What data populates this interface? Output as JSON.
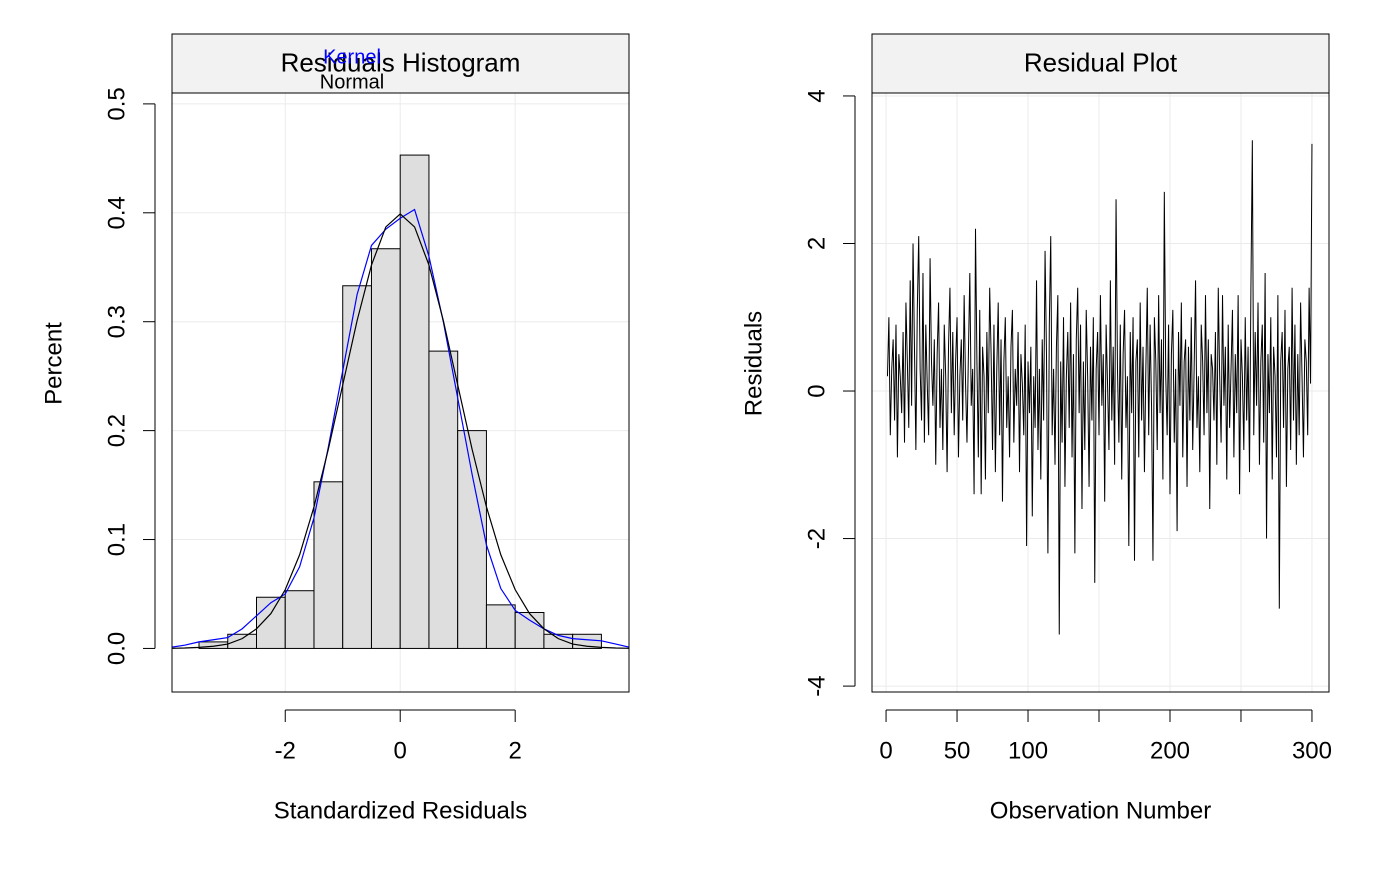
{
  "chart_data": [
    {
      "type": "histogram",
      "title": "Residuals Histogram",
      "xlabel": "Standardized Residuals",
      "ylabel": "Percent",
      "bins": [
        -3.5,
        -3,
        -2.5,
        -2,
        -1.5,
        -1,
        -0.5,
        0,
        0.5,
        1,
        1.5,
        2,
        2.5,
        3,
        3.5
      ],
      "values": [
        0.006,
        0.013,
        0.047,
        0.053,
        0.153,
        0.333,
        0.367,
        0.453,
        0.273,
        0.2,
        0.04,
        0.033,
        0.013,
        0.013
      ],
      "color": "#dedede",
      "series": [
        {
          "name": "Kernel",
          "color": "#0000ff",
          "x": [
            -4,
            -3.75,
            -3.5,
            -3.25,
            -3,
            -2.75,
            -2.5,
            -2.25,
            -2,
            -1.75,
            -1.5,
            -1.25,
            -1,
            -0.75,
            -0.5,
            -0.25,
            0,
            0.25,
            0.5,
            0.75,
            1,
            1.25,
            1.5,
            1.75,
            2,
            2.25,
            2.5,
            2.75,
            3,
            3.25,
            3.5,
            3.75,
            4
          ],
          "values": [
            0.001,
            0.003,
            0.006,
            0.008,
            0.01,
            0.018,
            0.03,
            0.042,
            0.05,
            0.075,
            0.12,
            0.185,
            0.255,
            0.325,
            0.37,
            0.385,
            0.395,
            0.403,
            0.36,
            0.3,
            0.23,
            0.16,
            0.095,
            0.055,
            0.035,
            0.026,
            0.018,
            0.012,
            0.009,
            0.008,
            0.007,
            0.004,
            0.001
          ]
        },
        {
          "name": "Normal",
          "color": "#000000",
          "x": [
            -4,
            -3.75,
            -3.5,
            -3.25,
            -3,
            -2.75,
            -2.5,
            -2.25,
            -2,
            -1.75,
            -1.5,
            -1.25,
            -1,
            -0.75,
            -0.5,
            -0.25,
            0,
            0.25,
            0.5,
            0.75,
            1,
            1.25,
            1.5,
            1.75,
            2,
            2.25,
            2.5,
            2.75,
            3,
            3.25,
            3.5,
            3.75,
            4
          ],
          "values": [
            0.0001,
            0.0004,
            0.001,
            0.002,
            0.004,
            0.009,
            0.018,
            0.032,
            0.054,
            0.086,
            0.13,
            0.183,
            0.242,
            0.301,
            0.352,
            0.387,
            0.399,
            0.387,
            0.352,
            0.301,
            0.242,
            0.183,
            0.13,
            0.086,
            0.054,
            0.032,
            0.018,
            0.009,
            0.004,
            0.002,
            0.001,
            0.0004,
            0.0001
          ]
        }
      ],
      "xlim": [
        -3.97,
        3.98
      ],
      "ylim": [
        -0.04,
        0.51
      ],
      "xticks": [
        -2,
        0,
        2
      ],
      "yticks": [
        {
          "value": 0,
          "label": "0.0"
        },
        0.1,
        0.2,
        0.3,
        0.4,
        0.5
      ],
      "grid": true,
      "legend": "top"
    },
    {
      "type": "line",
      "title": "Residual Plot",
      "xlabel": "Observation Number",
      "ylabel": "Residuals",
      "color": "#000000",
      "x": [
        1,
        2,
        3,
        4,
        5,
        6,
        7,
        8,
        9,
        10,
        11,
        12,
        13,
        14,
        15,
        16,
        17,
        18,
        19,
        20,
        21,
        22,
        23,
        24,
        25,
        26,
        27,
        28,
        29,
        30,
        31,
        32,
        33,
        34,
        35,
        36,
        37,
        38,
        39,
        40,
        41,
        42,
        43,
        44,
        45,
        46,
        47,
        48,
        49,
        50,
        51,
        52,
        53,
        54,
        55,
        56,
        57,
        58,
        59,
        60,
        61,
        62,
        63,
        64,
        65,
        66,
        67,
        68,
        69,
        70,
        71,
        72,
        73,
        74,
        75,
        76,
        77,
        78,
        79,
        80,
        81,
        82,
        83,
        84,
        85,
        86,
        87,
        88,
        89,
        90,
        91,
        92,
        93,
        94,
        95,
        96,
        97,
        98,
        99,
        100,
        101,
        102,
        103,
        104,
        105,
        106,
        107,
        108,
        109,
        110,
        111,
        112,
        113,
        114,
        115,
        116,
        117,
        118,
        119,
        120,
        121,
        122,
        123,
        124,
        125,
        126,
        127,
        128,
        129,
        130,
        131,
        132,
        133,
        134,
        135,
        136,
        137,
        138,
        139,
        140,
        141,
        142,
        143,
        144,
        145,
        146,
        147,
        148,
        149,
        150,
        151,
        152,
        153,
        154,
        155,
        156,
        157,
        158,
        159,
        160,
        161,
        162,
        163,
        164,
        165,
        166,
        167,
        168,
        169,
        170,
        171,
        172,
        173,
        174,
        175,
        176,
        177,
        178,
        179,
        180,
        181,
        182,
        183,
        184,
        185,
        186,
        187,
        188,
        189,
        190,
        191,
        192,
        193,
        194,
        195,
        196,
        197,
        198,
        199,
        200,
        201,
        202,
        203,
        204,
        205,
        206,
        207,
        208,
        209,
        210,
        211,
        212,
        213,
        214,
        215,
        216,
        217,
        218,
        219,
        220,
        221,
        222,
        223,
        224,
        225,
        226,
        227,
        228,
        229,
        230,
        231,
        232,
        233,
        234,
        235,
        236,
        237,
        238,
        239,
        240,
        241,
        242,
        243,
        244,
        245,
        246,
        247,
        248,
        249,
        250,
        251,
        252,
        253,
        254,
        255,
        256,
        257,
        258,
        259,
        260,
        261,
        262,
        263,
        264,
        265,
        266,
        267,
        268,
        269,
        270,
        271,
        272,
        273,
        274,
        275,
        276,
        277,
        278,
        279,
        280,
        281,
        282,
        283,
        284,
        285,
        286,
        287,
        288,
        289,
        290,
        291,
        292,
        293,
        294,
        295,
        296,
        297,
        298,
        299,
        300
      ],
      "values": [
        0.2,
        1.0,
        -0.6,
        0.3,
        0.7,
        -0.4,
        0.9,
        -0.9,
        0.5,
        0.2,
        -0.3,
        0.8,
        -0.7,
        1.2,
        0.4,
        -0.5,
        1.5,
        -0.2,
        2.0,
        0.6,
        -0.8,
        1.1,
        2.1,
        0.3,
        -0.4,
        1.6,
        -0.7,
        0.9,
        0.1,
        -0.6,
        1.8,
        0.4,
        -0.2,
        0.7,
        -1.0,
        0.5,
        1.2,
        -0.5,
        0.3,
        -0.8,
        0.9,
        0.2,
        -1.1,
        0.6,
        1.4,
        -0.3,
        0.8,
        -0.6,
        0.4,
        1.0,
        -0.9,
        0.2,
        0.7,
        -0.4,
        1.3,
        0.1,
        -0.7,
        0.5,
        1.6,
        -0.2,
        0.3,
        -1.4,
        2.2,
        0.4,
        -0.9,
        1.1,
        -1.4,
        0.6,
        0.2,
        -1.2,
        0.8,
        -0.3,
        1.4,
        0.5,
        -0.8,
        0.9,
        -1.1,
        0.3,
        1.2,
        -0.6,
        0.7,
        -1.5,
        0.4,
        1.0,
        -0.5,
        0.2,
        -0.9,
        0.6,
        1.1,
        -0.7,
        0.3,
        -0.2,
        0.8,
        -1.1,
        0.5,
        0.1,
        -0.6,
        0.9,
        -2.1,
        0.4,
        -0.3,
        0.6,
        -1.7,
        0.2,
        -0.5,
        1.5,
        -0.8,
        0.3,
        -1.2,
        0.7,
        -0.4,
        1.9,
        0.5,
        -2.2,
        0.9,
        2.1,
        -0.6,
        0.3,
        -1.0,
        0.6,
        1.3,
        -3.3,
        0.4,
        -0.7,
        1.0,
        -1.3,
        0.2,
        0.8,
        -0.5,
        1.2,
        -0.9,
        0.5,
        -2.2,
        0.7,
        1.4,
        -0.3,
        0.9,
        -1.6,
        0.4,
        -0.8,
        1.1,
        0.2,
        -1.3,
        0.6,
        -0.4,
        1.0,
        -2.6,
        0.3,
        0.8,
        -0.6,
        1.3,
        -0.2,
        0.5,
        -1.5,
        0.9,
        0.1,
        -0.8,
        1.5,
        -0.4,
        0.6,
        -1.0,
        2.6,
        0.3,
        -0.7,
        0.9,
        -1.2,
        0.5,
        1.1,
        -0.5,
        0.2,
        -2.1,
        0.8,
        -0.3,
        1.0,
        -2.3,
        0.4,
        0.7,
        -0.9,
        1.2,
        -0.4,
        0.6,
        -1.1,
        0.3,
        1.4,
        -0.6,
        0.9,
        -0.2,
        -2.3,
        1.0,
        0.4,
        -0.8,
        1.3,
        -0.3,
        0.7,
        -1.2,
        2.7,
        0.2,
        -0.6,
        0.9,
        -1.4,
        0.5,
        1.1,
        -0.7,
        0.3,
        -1.9,
        0.8,
        -0.2,
        1.2,
        -0.9,
        0.4,
        0.7,
        -1.3,
        0.6,
        -0.4,
        1.0,
        -0.8,
        0.3,
        1.5,
        -0.5,
        0.2,
        -1.1,
        0.9,
        0.4,
        -0.6,
        1.3,
        -0.3,
        0.7,
        -1.6,
        0.5,
        0.3,
        -0.4,
        0.8,
        -1.0,
        1.4,
        0.2,
        -0.7,
        1.3,
        -0.2,
        0.6,
        -1.2,
        0.9,
        -0.5,
        0.3,
        1.1,
        -0.9,
        0.5,
        -0.3,
        1.3,
        -1.4,
        0.7,
        0.2,
        -0.8,
        1.0,
        -0.4,
        0.6,
        -1.1,
        1.4,
        3.4,
        -0.6,
        0.8,
        -0.2,
        1.2,
        -1.0,
        0.4,
        0.9,
        -0.7,
        1.6,
        -2.0,
        0.5,
        -0.3,
        1.0,
        -1.2,
        0.6,
        0.2,
        -0.9,
        1.3,
        -2.95,
        0.4,
        0.8,
        -0.5,
        1.1,
        -1.3,
        0.3,
        0.6,
        -0.8,
        1.4,
        -0.4,
        0.9,
        -1.0,
        0.5,
        -0.6,
        1.2,
        0.2,
        -0.9,
        0.7,
        0.4,
        -0.6,
        1.4,
        0.1,
        3.35
      ],
      "xlim": [
        -9.9,
        312
      ],
      "ylim": [
        -4.08,
        4.04
      ],
      "xticks": [
        0,
        50,
        100,
        200,
        300
      ],
      "xticks_unlabeled": [
        150,
        250
      ],
      "yticks": [
        -4,
        -2,
        0,
        2,
        4
      ],
      "grid": true
    }
  ]
}
